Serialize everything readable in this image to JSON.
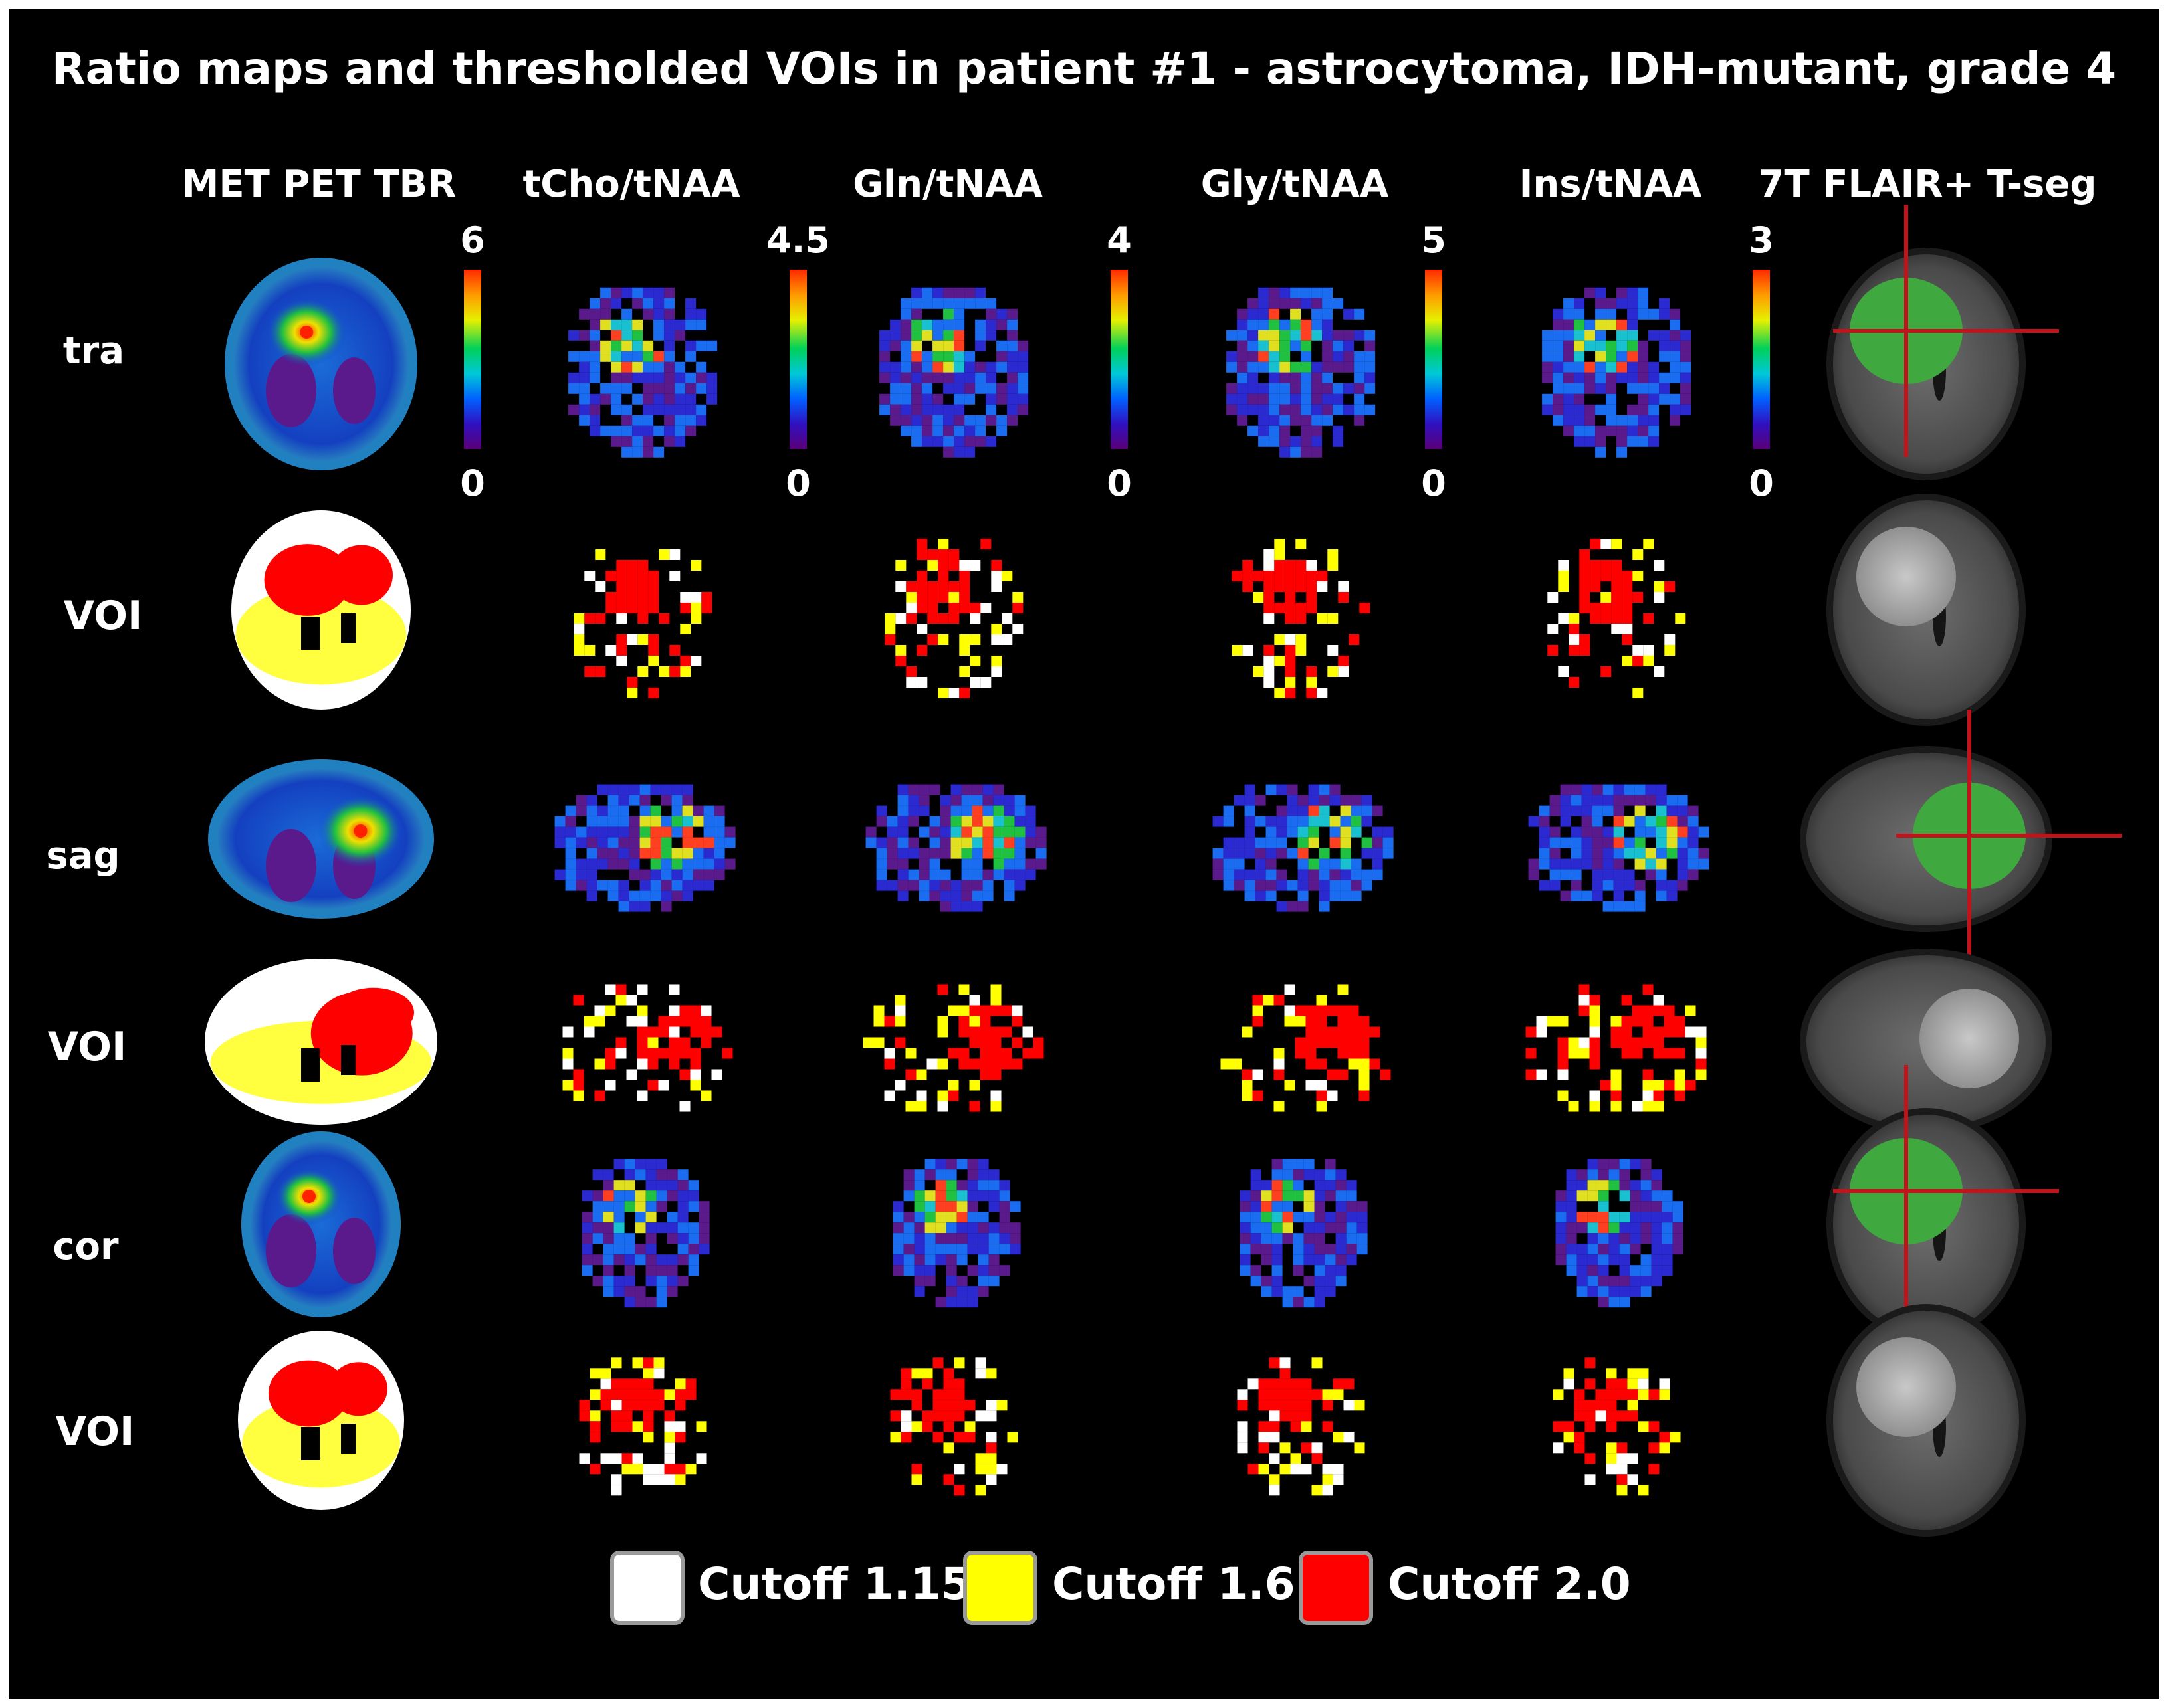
{
  "title": "Ratio maps and thresholded VOIs in patient #1 - astrocytoma, IDH-mutant, grade 4",
  "columns": [
    {
      "label": "MET PET TBR",
      "max": "6",
      "min": "0"
    },
    {
      "label": "tCho/tNAA",
      "max": "4.5",
      "min": "0"
    },
    {
      "label": "Gln/tNAA",
      "max": "4",
      "min": "0"
    },
    {
      "label": "Gly/tNAA",
      "max": "5",
      "min": "0"
    },
    {
      "label": "Ins/tNAA",
      "max": "3",
      "min": "0"
    },
    {
      "label": "7T FLAIR+ T-seg"
    }
  ],
  "rows": [
    "tra",
    "VOI",
    "sag",
    "VOI",
    "cor",
    "VOI"
  ],
  "legend": [
    {
      "label": "Cutoff 1.15",
      "color": "#ffffff"
    },
    {
      "label": "Cutoff 1.6",
      "color": "#ffff00"
    },
    {
      "label": "Cutoff 2.0",
      "color": "#ff0000"
    }
  ],
  "colors": {
    "background": "#000000",
    "tumor_segmentation": "#3fa83f",
    "crosshair": "#c0141c",
    "legend_border": "#9a9a9a"
  }
}
